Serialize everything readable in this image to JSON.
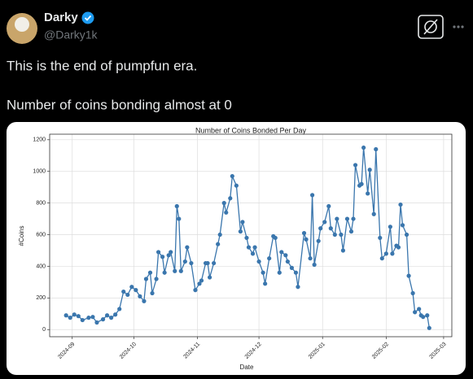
{
  "tweet": {
    "name": "Darky",
    "handle": "@Darky1k",
    "text": [
      "This is the end of pumpfun era.",
      "Number of coins bonding almost at 0"
    ]
  },
  "chart_data": {
    "type": "line",
    "title": "Number of Coins Bonded Per Day",
    "xlabel": "Date",
    "ylabel": "#Coins",
    "color": "#3a76ad",
    "grid": true,
    "xlim": [
      -11,
      185
    ],
    "ylim": [
      -45,
      1235
    ],
    "xticks": [
      {
        "value": 0,
        "label": "2024-09"
      },
      {
        "value": 30,
        "label": "2024-10"
      },
      {
        "value": 61,
        "label": "2024-11"
      },
      {
        "value": 91,
        "label": "2024-12"
      },
      {
        "value": 122,
        "label": "2025-01"
      },
      {
        "value": 153,
        "label": "2025-02"
      },
      {
        "value": 181,
        "label": "2025-03"
      }
    ],
    "yticks": [
      0,
      200,
      400,
      600,
      800,
      1000,
      1200
    ],
    "x": [
      -3,
      -1,
      1,
      3,
      5,
      8,
      10,
      12,
      15,
      17,
      19,
      21,
      23,
      25,
      27,
      29,
      31,
      33,
      35,
      36,
      38,
      39,
      41,
      42,
      44,
      45,
      47,
      48,
      50,
      51,
      52,
      53,
      55,
      56,
      58,
      60,
      62,
      63,
      65,
      66,
      67,
      69,
      71,
      72,
      74,
      75,
      77,
      78,
      80,
      82,
      83,
      85,
      86,
      88,
      89,
      91,
      93,
      94,
      96,
      98,
      99,
      101,
      102,
      104,
      105,
      107,
      109,
      110,
      113,
      114,
      116,
      117,
      118,
      120,
      121,
      123,
      125,
      126,
      128,
      129,
      131,
      132,
      134,
      136,
      137,
      138,
      140,
      141,
      142,
      144,
      145,
      147,
      148,
      150,
      151,
      153,
      155,
      156,
      158,
      159,
      160,
      161,
      163,
      164,
      166,
      167,
      169,
      170,
      171,
      173,
      174
    ],
    "values": [
      90,
      75,
      95,
      85,
      60,
      75,
      80,
      45,
      65,
      90,
      75,
      95,
      130,
      240,
      220,
      270,
      250,
      210,
      180,
      320,
      360,
      230,
      320,
      490,
      460,
      360,
      470,
      490,
      370,
      780,
      700,
      370,
      430,
      520,
      420,
      250,
      290,
      310,
      420,
      420,
      330,
      420,
      540,
      600,
      800,
      740,
      830,
      970,
      910,
      620,
      680,
      580,
      520,
      480,
      520,
      430,
      360,
      290,
      450,
      590,
      580,
      360,
      490,
      470,
      430,
      390,
      360,
      270,
      610,
      570,
      450,
      850,
      410,
      560,
      640,
      680,
      780,
      640,
      600,
      700,
      600,
      500,
      700,
      620,
      700,
      1040,
      910,
      920,
      1150,
      860,
      1010,
      730,
      1140,
      580,
      450,
      480,
      650,
      480,
      530,
      520,
      790,
      660,
      600,
      340,
      230,
      110,
      130,
      90,
      80,
      90,
      10
    ]
  }
}
